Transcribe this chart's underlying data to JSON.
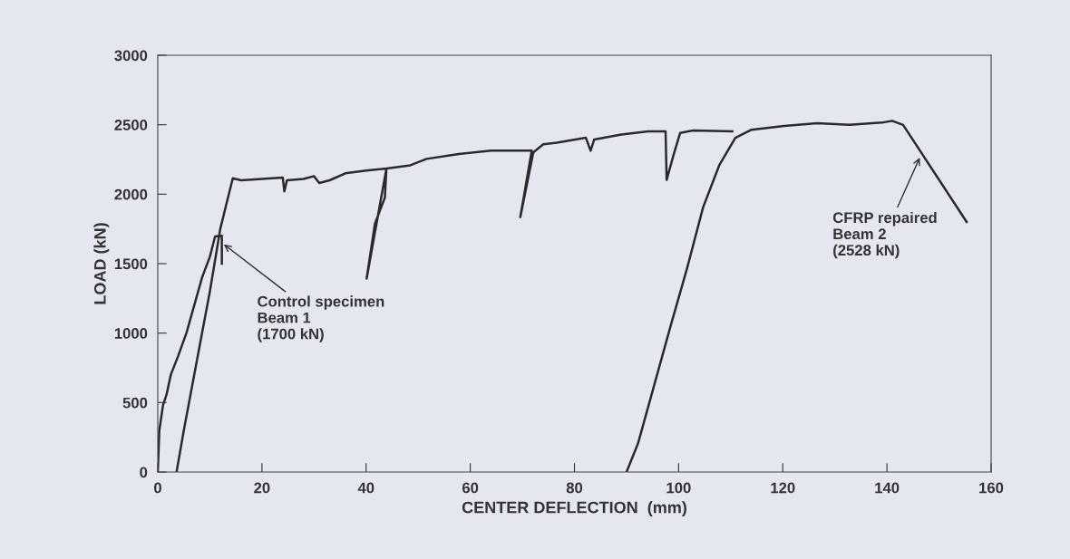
{
  "chart_data": {
    "type": "line",
    "xlabel": "CENTER DEFLECTION  (mm)",
    "ylabel": "LOAD (kN)",
    "xlim": [
      0,
      160
    ],
    "xticks": [
      0,
      20,
      40,
      60,
      80,
      100,
      120,
      140,
      160
    ],
    "ylim": [
      0,
      3000
    ],
    "yticks": [
      0,
      500,
      1000,
      1500,
      2000,
      2500,
      3000
    ],
    "grid": false,
    "marker": "none",
    "line_style": "solid",
    "series": [
      {
        "color": "#2a2a2a",
        "x": [
          0,
          0.3,
          1,
          1.7,
          2.5,
          3.9,
          5.5,
          6.7,
          8.5,
          10,
          11,
          12.3,
          12.3
        ],
        "values": [
          0,
          300,
          480,
          560,
          700,
          834,
          1000,
          1160,
          1400,
          1550,
          1696,
          1700,
          1500
        ]
      },
      {
        "color": "#2a2a2a",
        "x": [
          3.6,
          5,
          8,
          10,
          12,
          14.4,
          16,
          20,
          24,
          24.3,
          24.8,
          28,
          30,
          31,
          33,
          36,
          40,
          43.9,
          40.1,
          41.7,
          43.6,
          43.9,
          48.5,
          51.6,
          57.8,
          64,
          71.8,
          69.6,
          72.1,
          74,
          76.6,
          82.2,
          83.1,
          83.8,
          89,
          94.1,
          97.5,
          97.7,
          99,
          100.3,
          102.8,
          110.3
        ],
        "values": [
          0,
          300,
          900,
          1300,
          1750,
          2115,
          2100,
          2110,
          2120,
          2020,
          2100,
          2110,
          2130,
          2080,
          2100,
          2150,
          2170,
          2185,
          1393,
          1789,
          1975,
          2185,
          2208,
          2254,
          2289,
          2313,
          2313,
          1835,
          2301,
          2359,
          2371,
          2406,
          2313,
          2394,
          2429,
          2452,
          2452,
          2103,
          2278,
          2441,
          2459,
          2452
        ]
      },
      {
        "color": "#2a2a2a",
        "x": [
          90,
          92.2,
          95.3,
          98.4,
          101.6,
          104.7,
          107.8,
          110.9,
          114,
          120.3,
          126.6,
          132.8,
          139,
          141,
          143.1,
          155.3
        ],
        "values": [
          0,
          205,
          624,
          1043,
          1463,
          1905,
          2208,
          2406,
          2464,
          2492,
          2511,
          2499,
          2515,
          2528,
          2499,
          1800
        ]
      }
    ],
    "annotations": [
      {
        "text": "Control specimen\nBeam 1\n(1700 kN)",
        "x": 12.3,
        "y": 1650
      },
      {
        "text": "CFRP repaired\nBeam 2\n(2528 kN)",
        "x": 146.5,
        "y": 2280
      }
    ]
  }
}
